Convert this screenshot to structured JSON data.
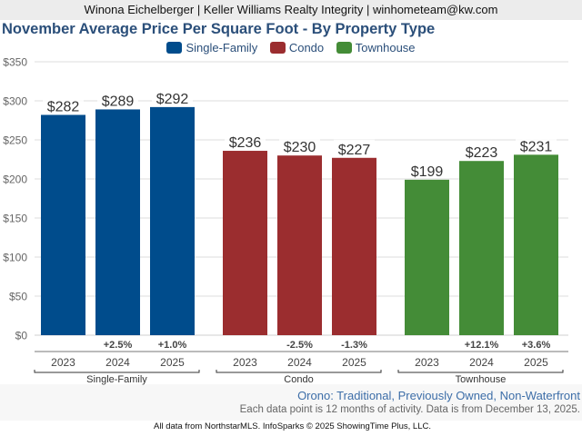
{
  "header": {
    "agent_line": "Winona Eichelberger | Keller Williams Realty Integrity | winhometeam@kw.com"
  },
  "chart_data": {
    "type": "bar",
    "title": "November Average Price Per Square Foot - By Property Type",
    "xlabel": "",
    "ylabel": "",
    "ylim": [
      0,
      350
    ],
    "yticks": [
      0,
      50,
      100,
      150,
      200,
      250,
      300,
      350
    ],
    "ytick_labels": [
      "$0",
      "$50",
      "$100",
      "$150",
      "$200",
      "$250",
      "$300",
      "$350"
    ],
    "grid": true,
    "legend_position": "top-center",
    "groups": [
      {
        "name": "Single-Family",
        "color": "#004c8c",
        "categories": [
          "2023",
          "2024",
          "2025"
        ],
        "values": [
          282,
          289,
          292
        ],
        "value_labels": [
          "$282",
          "$289",
          "$292"
        ],
        "change_labels": [
          "",
          "+2.5%",
          "+1.0%"
        ]
      },
      {
        "name": "Condo",
        "color": "#9b2d2f",
        "categories": [
          "2023",
          "2024",
          "2025"
        ],
        "values": [
          236,
          230,
          227
        ],
        "value_labels": [
          "$236",
          "$230",
          "$227"
        ],
        "change_labels": [
          "",
          "-2.5%",
          "-1.3%"
        ]
      },
      {
        "name": "Townhouse",
        "color": "#448c37",
        "categories": [
          "2023",
          "2024",
          "2025"
        ],
        "values": [
          199,
          223,
          231
        ],
        "value_labels": [
          "$199",
          "$223",
          "$231"
        ],
        "change_labels": [
          "",
          "+12.1%",
          "+3.6%"
        ]
      }
    ]
  },
  "legend": [
    {
      "label": "Single-Family",
      "color": "#004c8c"
    },
    {
      "label": "Condo",
      "color": "#9b2d2f"
    },
    {
      "label": "Townhouse",
      "color": "#448c37"
    }
  ],
  "subtitle": "Orono: Traditional, Previously Owned, Non-Waterfront",
  "note": "Each data point is 12 months of activity. Data is from December 13, 2025.",
  "footer": "All data from NorthstarMLS. InfoSparks © 2025 ShowingTime Plus, LLC."
}
